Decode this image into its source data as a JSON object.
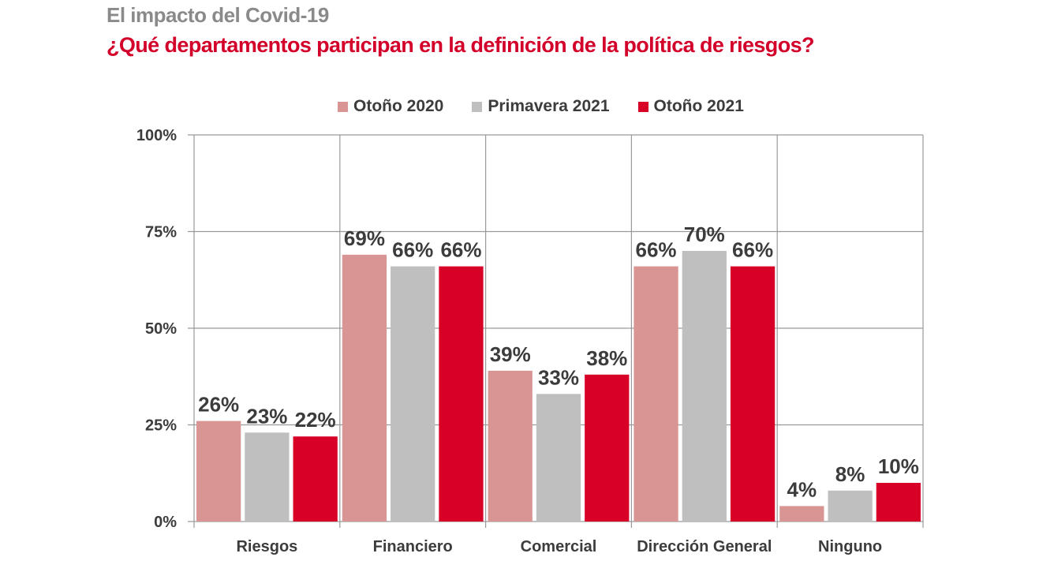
{
  "header": {
    "supertitle": "El impacto del Covid-19",
    "title": "¿Qué departamentos participan en la definición de la política de riesgos?"
  },
  "chart_data": {
    "type": "bar",
    "title": "¿Qué departamentos participan en la definición de la política de riesgos?",
    "subtitle": "El impacto del Covid-19",
    "xlabel": "",
    "ylabel": "",
    "categories": [
      "Riesgos",
      "Financiero",
      "Comercial",
      "Dirección General",
      "Ninguno"
    ],
    "series": [
      {
        "name": "Otoño 2020",
        "color": "#d99594",
        "values": [
          26,
          69,
          39,
          66,
          4
        ]
      },
      {
        "name": "Primavera 2021",
        "color": "#bfbfbf",
        "values": [
          23,
          66,
          33,
          70,
          8
        ]
      },
      {
        "name": "Otoño 2021",
        "color": "#d90028",
        "values": [
          22,
          66,
          38,
          66,
          10
        ]
      }
    ],
    "ylim": [
      0,
      100
    ],
    "yticks": [
      0,
      25,
      50,
      75,
      100
    ],
    "ytick_labels": [
      "0%",
      "25%",
      "50%",
      "75%",
      "100%"
    ],
    "value_suffix": "%",
    "grid": true,
    "legend": "top-center"
  }
}
